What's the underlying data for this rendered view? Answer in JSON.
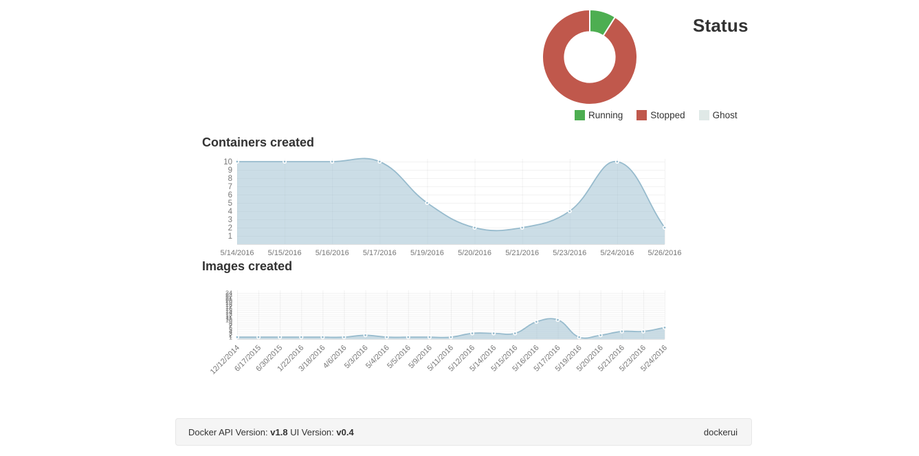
{
  "chart_data": [
    {
      "id": "status",
      "type": "pie",
      "title": "Status",
      "inner_cutout_percent": 53,
      "labels": [
        "Running",
        "Stopped",
        "Ghost"
      ],
      "values_percent": [
        9,
        91,
        0
      ],
      "colors": [
        "#4DAE51",
        "#C0584C",
        "#E0E9E7"
      ],
      "segment_stroke": "#ffffff",
      "legend_position": "bottom"
    },
    {
      "id": "containers_created",
      "type": "area",
      "title": "Containers created",
      "categories": [
        "5/14/2016",
        "5/15/2016",
        "5/16/2016",
        "5/17/2016",
        "5/19/2016",
        "5/20/2016",
        "5/21/2016",
        "5/23/2016",
        "5/24/2016",
        "5/26/2016"
      ],
      "values": [
        10,
        10,
        10,
        10,
        5,
        2,
        2,
        4,
        10,
        2
      ],
      "y_ticks": [
        1,
        2,
        3,
        4,
        5,
        6,
        7,
        8,
        9,
        10
      ],
      "ylim": [
        0,
        10
      ],
      "xlabel": "",
      "ylabel": "",
      "grid": true,
      "line_color": "#97BBCD",
      "fill_color": "rgba(151,187,205,0.5)",
      "point_stroke": "#ffffff"
    },
    {
      "id": "images_created",
      "type": "area",
      "title": "Images created",
      "categories": [
        "12/12/2014",
        "6/17/2015",
        "6/30/2015",
        "1/22/2016",
        "3/18/2016",
        "4/6/2016",
        "5/3/2016",
        "5/4/2016",
        "5/5/2016",
        "5/9/2016",
        "5/11/2016",
        "5/12/2016",
        "5/14/2016",
        "5/15/2016",
        "5/16/2016",
        "5/17/2016",
        "5/19/2016",
        "5/20/2016",
        "5/21/2016",
        "5/23/2016",
        "5/24/2016"
      ],
      "values": [
        1,
        1,
        1,
        1,
        1,
        1,
        2,
        1,
        1,
        1,
        1,
        3,
        3,
        3,
        9,
        10,
        1,
        2,
        4,
        4,
        6
      ],
      "y_ticks": [
        1,
        2,
        3,
        4,
        5,
        6,
        7,
        8,
        9,
        10,
        11,
        12,
        13,
        14,
        15,
        16,
        17,
        18,
        19,
        20,
        21,
        22,
        23,
        24
      ],
      "ylim": [
        0,
        24
      ],
      "xlabel": "",
      "ylabel": "",
      "grid": true,
      "x_label_rotation": -45,
      "line_color": "#97BBCD",
      "fill_color": "rgba(151,187,205,0.5)",
      "point_stroke": "#ffffff"
    }
  ],
  "footer": {
    "api_label": "Docker API Version:",
    "api_version": "v1.8",
    "ui_label": "UI Version:",
    "ui_version": "v0.4",
    "brand": "dockerui"
  },
  "colors": {
    "heading": "#333333",
    "axis_label": "#777777",
    "grid_line": "rgba(0,0,0,0.05)",
    "axis_line": "rgba(0,0,0,0.12)",
    "footer_bg": "#f5f5f5",
    "footer_border": "#e7e7e7"
  }
}
